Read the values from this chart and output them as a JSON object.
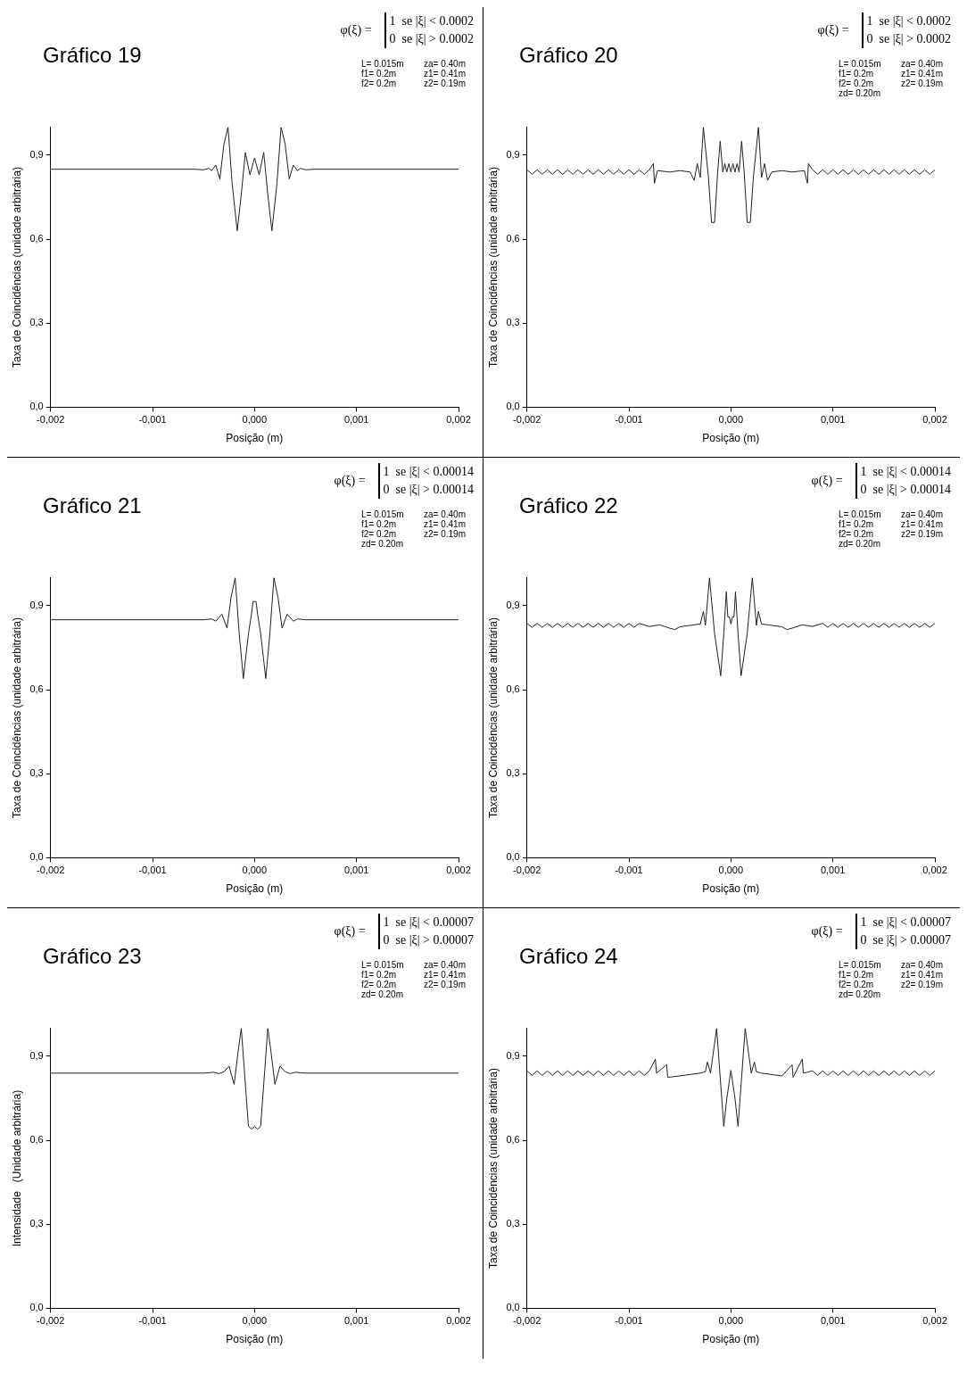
{
  "chart_data": [
    {
      "type": "line",
      "title": "Gráfico 19",
      "xlabel": "Posição (m)",
      "ylabel": "Taxa de Coincidências (unidade arbitrária)",
      "annotations": [
        "φ(ξ) =",
        "1  se |ξ| < 0.0002",
        "0  se |ξ| > 0.0002",
        "L= 0.015m",
        "za= 0.40m",
        "f1= 0.2m",
        "z1= 0.41m",
        "f2= 0.2m",
        "z2= 0.19m"
      ],
      "xlim": [
        -0.002,
        0.002
      ],
      "xticks": [
        {
          "value": -0.002,
          "label": "-0,002"
        },
        {
          "value": -0.001,
          "label": "-0,001"
        },
        {
          "value": 0,
          "label": "0,000"
        },
        {
          "value": 0.001,
          "label": "0,001"
        },
        {
          "value": 0.002,
          "label": "0,002"
        }
      ],
      "ylim": [
        0,
        1.0
      ],
      "yticks": [
        {
          "value": 0,
          "label": "0,0"
        },
        {
          "value": 0.3,
          "label": "0,3"
        },
        {
          "value": 0.6,
          "label": "0,6"
        },
        {
          "value": 0.9,
          "label": "0,9"
        }
      ],
      "grid": false,
      "legend": false,
      "marker": "none",
      "line_style": "solid",
      "series": [
        {
          "color": "#222222",
          "x": [
            -0.002,
            -0.0006,
            -0.0005,
            -0.00045,
            -0.00042,
            -0.00038,
            -0.00034,
            -0.0003,
            -0.00026,
            -0.00022,
            -0.00017,
            -0.00013,
            -9e-05,
            -4.5e-05,
            0,
            4.5e-05,
            9e-05,
            0.00013,
            0.00017,
            0.00022,
            0.00026,
            0.0003,
            0.00034,
            0.00038,
            0.00042,
            0.00045,
            0.0005,
            0.0006,
            0.002
          ],
          "values": [
            0.85,
            0.85,
            0.848,
            0.853,
            0.845,
            0.865,
            0.815,
            0.94,
            1.0,
            0.8,
            0.63,
            0.76,
            0.91,
            0.83,
            0.89,
            0.83,
            0.91,
            0.76,
            0.63,
            0.8,
            1.0,
            0.94,
            0.815,
            0.865,
            0.845,
            0.853,
            0.848,
            0.85,
            0.85
          ]
        }
      ]
    },
    {
      "type": "line",
      "title": "Gráfico 20",
      "xlabel": "Posição (m)",
      "ylabel": "Taxa de Coincidências (unidade arbitrária)",
      "annotations": [
        "φ(ξ) =",
        "1  se |ξ| < 0.0002",
        "0  se |ξ| > 0.0002",
        "L= 0.015m",
        "za= 0.40m",
        "f1= 0.2m",
        "z1= 0.41m",
        "f2= 0.2m",
        "z2= 0.19m",
        "zd= 0.20m"
      ],
      "xlim": [
        -0.002,
        0.002
      ],
      "xticks": [
        {
          "value": -0.002,
          "label": "-0,002"
        },
        {
          "value": -0.001,
          "label": "-0,001"
        },
        {
          "value": 0,
          "label": "0,000"
        },
        {
          "value": 0.001,
          "label": "0,001"
        },
        {
          "value": 0.002,
          "label": "0,002"
        }
      ],
      "ylim": [
        0,
        1.0
      ],
      "yticks": [
        {
          "value": 0,
          "label": "0,0"
        },
        {
          "value": 0.3,
          "label": "0,3"
        },
        {
          "value": 0.6,
          "label": "0,6"
        },
        {
          "value": 0.9,
          "label": "0,9"
        }
      ],
      "grid": false,
      "legend": false,
      "marker": "none",
      "line_style": "solid",
      "series": [
        {
          "color": "#222222",
          "x": [
            -0.002,
            -0.00195,
            -0.0019,
            -0.00185,
            -0.0018,
            -0.00175,
            -0.0017,
            -0.00165,
            -0.0016,
            -0.00155,
            -0.0015,
            -0.00145,
            -0.0014,
            -0.00135,
            -0.0013,
            -0.00125,
            -0.0012,
            -0.00115,
            -0.0011,
            -0.00105,
            -0.001,
            -0.00095,
            -0.0009,
            -0.00085,
            -0.0008,
            -0.00076,
            -0.00075,
            -0.00072,
            -0.0006,
            -0.0005,
            -0.0004,
            -0.00036,
            -0.00033,
            -0.0003,
            -0.00027,
            -0.00022,
            -0.00019,
            -0.00016,
            -0.00013,
            -0.000105,
            -8e-05,
            -6e-05,
            -4e-05,
            -2e-05,
            0,
            2e-05,
            4e-05,
            6e-05,
            8e-05,
            0.000105,
            0.00013,
            0.00016,
            0.00019,
            0.00022,
            0.00027,
            0.0003,
            0.00033,
            0.00036,
            0.0004,
            0.0005,
            0.0006,
            0.00072,
            0.00075,
            0.00076,
            0.0008,
            0.00085,
            0.0009,
            0.00095,
            0.001,
            0.00105,
            0.0011,
            0.00115,
            0.0012,
            0.00125,
            0.0013,
            0.00135,
            0.0014,
            0.00145,
            0.0015,
            0.00155,
            0.0016,
            0.00165,
            0.0017,
            0.00175,
            0.0018,
            0.00185,
            0.0019,
            0.00195,
            0.002
          ],
          "values": [
            0.848,
            0.832,
            0.848,
            0.832,
            0.848,
            0.832,
            0.848,
            0.832,
            0.848,
            0.832,
            0.848,
            0.832,
            0.848,
            0.832,
            0.848,
            0.832,
            0.848,
            0.832,
            0.848,
            0.832,
            0.848,
            0.832,
            0.848,
            0.832,
            0.848,
            0.87,
            0.8,
            0.845,
            0.84,
            0.845,
            0.84,
            0.81,
            0.87,
            0.82,
            1.0,
            0.82,
            0.66,
            0.66,
            0.84,
            0.95,
            0.84,
            0.87,
            0.84,
            0.87,
            0.84,
            0.87,
            0.84,
            0.87,
            0.84,
            0.95,
            0.84,
            0.66,
            0.66,
            0.82,
            1.0,
            0.82,
            0.87,
            0.81,
            0.84,
            0.845,
            0.84,
            0.845,
            0.8,
            0.87,
            0.848,
            0.832,
            0.848,
            0.832,
            0.848,
            0.832,
            0.848,
            0.832,
            0.848,
            0.832,
            0.848,
            0.832,
            0.848,
            0.832,
            0.848,
            0.832,
            0.848,
            0.832,
            0.848,
            0.832,
            0.848,
            0.832,
            0.848,
            0.832,
            0.848
          ]
        }
      ]
    },
    {
      "type": "line",
      "title": "Gráfico 21",
      "xlabel": "Posição (m)",
      "ylabel": "Taxa de Coincidências (unidade arbitrária)",
      "annotations": [
        "φ(ξ) =",
        "1  se |ξ| < 0.00014",
        "0  se |ξ| > 0.00014",
        "L= 0.015m",
        "za= 0.40m",
        "f1= 0.2m",
        "z1= 0.41m",
        "f2= 0.2m",
        "z2= 0.19m",
        "zd= 0.20m"
      ],
      "xlim": [
        -0.002,
        0.002
      ],
      "xticks": [
        {
          "value": -0.002,
          "label": "-0,002"
        },
        {
          "value": -0.001,
          "label": "-0,001"
        },
        {
          "value": 0,
          "label": "0,000"
        },
        {
          "value": 0.001,
          "label": "0,001"
        },
        {
          "value": 0.002,
          "label": "0,002"
        }
      ],
      "ylim": [
        0,
        1.0
      ],
      "yticks": [
        {
          "value": 0,
          "label": "0,0"
        },
        {
          "value": 0.3,
          "label": "0,3"
        },
        {
          "value": 0.6,
          "label": "0,6"
        },
        {
          "value": 0.9,
          "label": "0,9"
        }
      ],
      "grid": false,
      "legend": false,
      "marker": "none",
      "line_style": "solid",
      "series": [
        {
          "color": "#222222",
          "x": [
            -0.002,
            -0.0005,
            -0.00042,
            -0.00038,
            -0.00032,
            -0.00027,
            -0.00023,
            -0.00019,
            -0.00015,
            -0.00011,
            -6e-05,
            -3e-05,
            -1.5e-05,
            1.5e-05,
            3e-05,
            6e-05,
            0.00011,
            0.00015,
            0.00019,
            0.00023,
            0.00027,
            0.00032,
            0.00038,
            0.00042,
            0.0005,
            0.002
          ],
          "values": [
            0.85,
            0.85,
            0.853,
            0.845,
            0.87,
            0.82,
            0.93,
            1.0,
            0.8,
            0.64,
            0.8,
            0.87,
            0.915,
            0.915,
            0.87,
            0.8,
            0.64,
            0.8,
            1.0,
            0.93,
            0.82,
            0.87,
            0.845,
            0.853,
            0.85,
            0.85
          ]
        }
      ]
    },
    {
      "type": "line",
      "title": "Gráfico 22",
      "xlabel": "Posição (m)",
      "ylabel": "Taxa de Coincidências (unidade arbitrária)",
      "annotations": [
        "φ(ξ) =",
        "1  se |ξ| < 0.00014",
        "0  se |ξ| > 0.00014",
        "L= 0.015m",
        "za= 0.40m",
        "f1= 0.2m",
        "z1= 0.41m",
        "f2= 0.2m",
        "z2= 0.19m",
        "zd= 0.20m"
      ],
      "xlim": [
        -0.002,
        0.002
      ],
      "xticks": [
        {
          "value": -0.002,
          "label": "-0,002"
        },
        {
          "value": -0.001,
          "label": "-0,001"
        },
        {
          "value": 0,
          "label": "0,000"
        },
        {
          "value": 0.001,
          "label": "0,001"
        },
        {
          "value": 0.002,
          "label": "0,002"
        }
      ],
      "ylim": [
        0,
        1.0
      ],
      "yticks": [
        {
          "value": 0,
          "label": "0,0"
        },
        {
          "value": 0.3,
          "label": "0,3"
        },
        {
          "value": 0.6,
          "label": "0,6"
        },
        {
          "value": 0.9,
          "label": "0,9"
        }
      ],
      "grid": false,
      "legend": false,
      "marker": "none",
      "line_style": "solid",
      "series": [
        {
          "color": "#222222",
          "x": [
            -0.002,
            -0.00195,
            -0.0019,
            -0.00185,
            -0.0018,
            -0.00175,
            -0.0017,
            -0.00165,
            -0.0016,
            -0.00155,
            -0.0015,
            -0.00145,
            -0.0014,
            -0.00135,
            -0.0013,
            -0.00125,
            -0.0012,
            -0.00115,
            -0.0011,
            -0.00105,
            -0.001,
            -0.00095,
            -0.0009,
            -0.0008,
            -0.0007,
            -0.0006,
            -0.00055,
            -0.0005,
            -0.0004,
            -0.0003,
            -0.00027,
            -0.00025,
            -0.00021,
            -0.00016,
            -0.0001,
            -7e-05,
            -4.5e-05,
            -3e-05,
            -1.5e-05,
            0,
            1.5e-05,
            3e-05,
            4.5e-05,
            7e-05,
            0.0001,
            0.00016,
            0.00021,
            0.00025,
            0.00027,
            0.0003,
            0.0004,
            0.0005,
            0.00055,
            0.0006,
            0.0007,
            0.0008,
            0.0009,
            0.00095,
            0.001,
            0.00105,
            0.0011,
            0.00115,
            0.0012,
            0.00125,
            0.0013,
            0.00135,
            0.0014,
            0.00145,
            0.0015,
            0.00155,
            0.0016,
            0.00165,
            0.0017,
            0.00175,
            0.0018,
            0.00185,
            0.0019,
            0.00195,
            0.002
          ],
          "values": [
            0.837,
            0.823,
            0.837,
            0.823,
            0.837,
            0.823,
            0.837,
            0.823,
            0.837,
            0.823,
            0.837,
            0.823,
            0.837,
            0.823,
            0.837,
            0.823,
            0.837,
            0.823,
            0.837,
            0.823,
            0.837,
            0.823,
            0.837,
            0.826,
            0.832,
            0.82,
            0.815,
            0.825,
            0.83,
            0.835,
            0.88,
            0.83,
            1.0,
            0.8,
            0.65,
            0.8,
            0.95,
            0.86,
            0.86,
            0.835,
            0.86,
            0.86,
            0.95,
            0.8,
            0.65,
            0.8,
            1.0,
            0.83,
            0.88,
            0.835,
            0.83,
            0.825,
            0.815,
            0.82,
            0.832,
            0.826,
            0.837,
            0.823,
            0.837,
            0.823,
            0.837,
            0.823,
            0.837,
            0.823,
            0.837,
            0.823,
            0.837,
            0.823,
            0.837,
            0.823,
            0.837,
            0.823,
            0.837,
            0.823,
            0.837,
            0.823,
            0.837,
            0.823,
            0.837
          ]
        }
      ]
    },
    {
      "type": "line",
      "title": "Gráfico 23",
      "xlabel": "Posição (m)",
      "ylabel": "Intensidade   (Unidade arbitrária)",
      "annotations": [
        "φ(ξ) =",
        "1  se |ξ| < 0.00007",
        "0  se |ξ| > 0.00007",
        "L= 0.015m",
        "za= 0.40m",
        "f1= 0.2m",
        "z1= 0.41m",
        "f2= 0.2m",
        "z2= 0.19m",
        "zd= 0.20m"
      ],
      "xlim": [
        -0.002,
        0.002
      ],
      "xticks": [
        {
          "value": -0.002,
          "label": "-0,002"
        },
        {
          "value": -0.001,
          "label": "-0,001"
        },
        {
          "value": 0,
          "label": "0,000"
        },
        {
          "value": 0.001,
          "label": "0,001"
        },
        {
          "value": 0.002,
          "label": "0,002"
        }
      ],
      "ylim": [
        0,
        1.0
      ],
      "yticks": [
        {
          "value": 0,
          "label": "0,0"
        },
        {
          "value": 0.3,
          "label": "0,3"
        },
        {
          "value": 0.6,
          "label": "0,6"
        },
        {
          "value": 0.9,
          "label": "0,9"
        }
      ],
      "grid": false,
      "legend": false,
      "marker": "none",
      "line_style": "solid",
      "series": [
        {
          "color": "#222222",
          "x": [
            -0.002,
            -0.0005,
            -0.0004,
            -0.00035,
            -0.0003,
            -0.00025,
            -0.0002,
            -0.00016,
            -0.00013,
            -0.0001,
            -6e-05,
            -3e-05,
            0,
            3e-05,
            6e-05,
            0.0001,
            0.00013,
            0.00016,
            0.0002,
            0.00025,
            0.0003,
            0.00035,
            0.0004,
            0.0005,
            0.002
          ],
          "values": [
            0.84,
            0.84,
            0.843,
            0.838,
            0.845,
            0.865,
            0.8,
            0.92,
            1.0,
            0.85,
            0.65,
            0.64,
            0.65,
            0.64,
            0.65,
            0.85,
            1.0,
            0.92,
            0.8,
            0.865,
            0.845,
            0.838,
            0.843,
            0.84,
            0.84
          ]
        }
      ]
    },
    {
      "type": "line",
      "title": "Gráfico 24",
      "xlabel": "Posição (m)",
      "ylabel": "Taxa de Coincidências (unidade arbitrária)",
      "annotations": [
        "φ(ξ) =",
        "1  se |ξ| < 0.00007",
        "0  se |ξ| > 0.00007",
        "L= 0.015m",
        "za= 0.40m",
        "f1= 0.2m",
        "z1= 0.41m",
        "f2= 0.2m",
        "z2= 0.19m",
        "zd= 0.20m"
      ],
      "xlim": [
        -0.002,
        0.002
      ],
      "xticks": [
        {
          "value": -0.002,
          "label": "-0,002"
        },
        {
          "value": -0.001,
          "label": "-0,001"
        },
        {
          "value": 0,
          "label": "0,000"
        },
        {
          "value": 0.001,
          "label": "0,001"
        },
        {
          "value": 0.002,
          "label": "0,002"
        }
      ],
      "ylim": [
        0,
        1.0
      ],
      "yticks": [
        {
          "value": 0,
          "label": "0,0"
        },
        {
          "value": 0.3,
          "label": "0,3"
        },
        {
          "value": 0.6,
          "label": "0,6"
        },
        {
          "value": 0.9,
          "label": "0,9"
        }
      ],
      "grid": false,
      "legend": false,
      "marker": "none",
      "line_style": "solid",
      "series": [
        {
          "color": "#222222",
          "x": [
            -0.002,
            -0.00195,
            -0.0019,
            -0.00185,
            -0.0018,
            -0.00175,
            -0.0017,
            -0.00165,
            -0.0016,
            -0.00155,
            -0.0015,
            -0.00145,
            -0.0014,
            -0.00135,
            -0.0013,
            -0.00125,
            -0.0012,
            -0.00115,
            -0.0011,
            -0.00105,
            -0.001,
            -0.00095,
            -0.0009,
            -0.00085,
            -0.0008,
            -0.00074,
            -0.00073,
            -0.00063,
            -0.00062,
            -0.0005,
            -0.0004,
            -0.0003,
            -0.00025,
            -0.00023,
            -0.0002,
            -0.00014,
            -0.0001,
            -7e-05,
            -4e-05,
            0,
            4e-05,
            7e-05,
            0.0001,
            0.00014,
            0.0002,
            0.00023,
            0.00025,
            0.0003,
            0.0004,
            0.0005,
            0.0006,
            0.00061,
            0.0007,
            0.00071,
            0.0008,
            0.00085,
            0.0009,
            0.00095,
            0.001,
            0.00105,
            0.0011,
            0.00115,
            0.0012,
            0.00125,
            0.0013,
            0.00135,
            0.0014,
            0.00145,
            0.0015,
            0.00155,
            0.0016,
            0.00165,
            0.0017,
            0.00175,
            0.0018,
            0.00185,
            0.0019,
            0.00195,
            0.002
          ],
          "values": [
            0.848,
            0.832,
            0.848,
            0.832,
            0.848,
            0.832,
            0.848,
            0.832,
            0.848,
            0.832,
            0.848,
            0.832,
            0.848,
            0.832,
            0.848,
            0.832,
            0.848,
            0.832,
            0.848,
            0.832,
            0.848,
            0.832,
            0.848,
            0.832,
            0.848,
            0.89,
            0.84,
            0.87,
            0.825,
            0.83,
            0.835,
            0.84,
            0.845,
            0.88,
            0.84,
            1.0,
            0.8,
            0.65,
            0.75,
            0.85,
            0.75,
            0.65,
            0.8,
            1.0,
            0.84,
            0.88,
            0.845,
            0.84,
            0.835,
            0.83,
            0.87,
            0.825,
            0.89,
            0.84,
            0.848,
            0.832,
            0.848,
            0.832,
            0.848,
            0.832,
            0.848,
            0.832,
            0.848,
            0.832,
            0.848,
            0.832,
            0.848,
            0.832,
            0.848,
            0.832,
            0.848,
            0.832,
            0.848,
            0.832,
            0.848,
            0.832,
            0.848,
            0.832,
            0.848
          ]
        }
      ]
    }
  ]
}
